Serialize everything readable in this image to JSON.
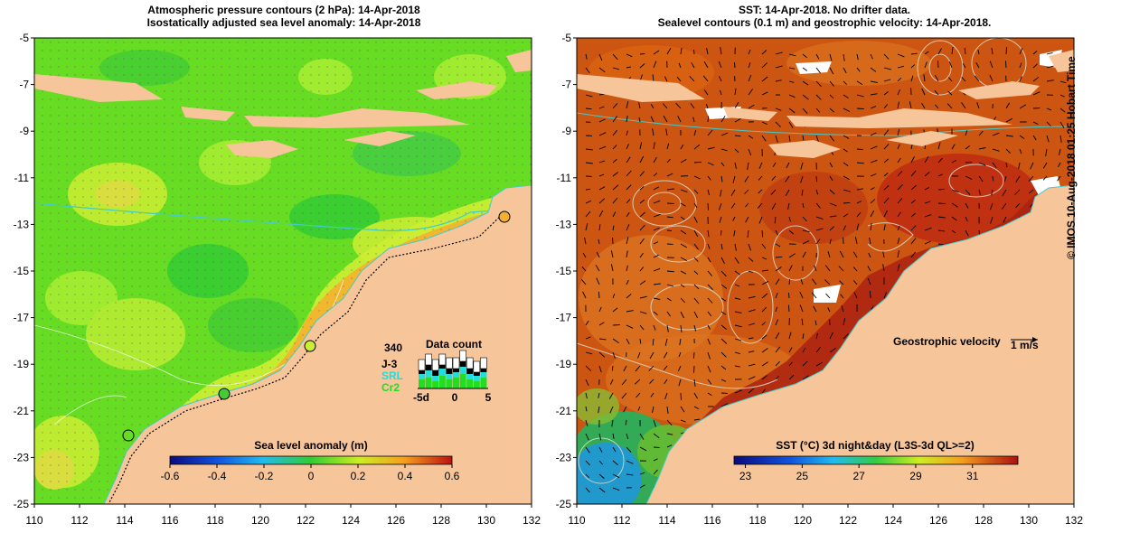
{
  "left_panel": {
    "title_line1": "Atmospheric pressure contours (2 hPa): 14-Apr-2018",
    "title_line2": "Isostatically adjusted sea level anomaly: 14-Apr-2018",
    "colorbar_label": "Sea level anomaly (m)",
    "colorbar_ticks": [
      "-0.6",
      "-0.4",
      "-0.2",
      "0",
      "0.2",
      "0.4",
      "0.6"
    ],
    "data_count": {
      "title": "Data count",
      "total": "340",
      "legend": [
        {
          "label": "J-3",
          "color": "#000000"
        },
        {
          "label": "SRL",
          "color": "#22dddd"
        },
        {
          "label": "Cr2",
          "color": "#22dd22"
        }
      ],
      "x_ticks": [
        "-5d",
        "0",
        "5"
      ]
    }
  },
  "right_panel": {
    "title_line1": "SST: 14-Apr-2018. No drifter data.",
    "title_line2": "Sealevel contours (0.1 m) and geostrophic velocity: 14-Apr-2018.",
    "colorbar_label": "SST (°C) 3d night&day (L3S-3d QL>=2)",
    "colorbar_ticks": [
      "23",
      "25",
      "27",
      "29",
      "31"
    ],
    "velocity_label": "Geostrophic velocity",
    "velocity_scale": "1 m/s"
  },
  "axes": {
    "x_ticks": [
      "110",
      "112",
      "114",
      "116",
      "118",
      "120",
      "122",
      "124",
      "126",
      "128",
      "130",
      "132"
    ],
    "y_ticks": [
      "-5",
      "-7",
      "-9",
      "-11",
      "-13",
      "-15",
      "-17",
      "-19",
      "-21",
      "-23",
      "-25"
    ]
  },
  "credit": "© IMOS 10-Aug-2018 01:25 Hobart Time",
  "colors": {
    "land": "#f7c59a",
    "sla_ocean": "#66dd22",
    "sst_ocean": "#cc5511",
    "coast_line": "#44cccc"
  }
}
